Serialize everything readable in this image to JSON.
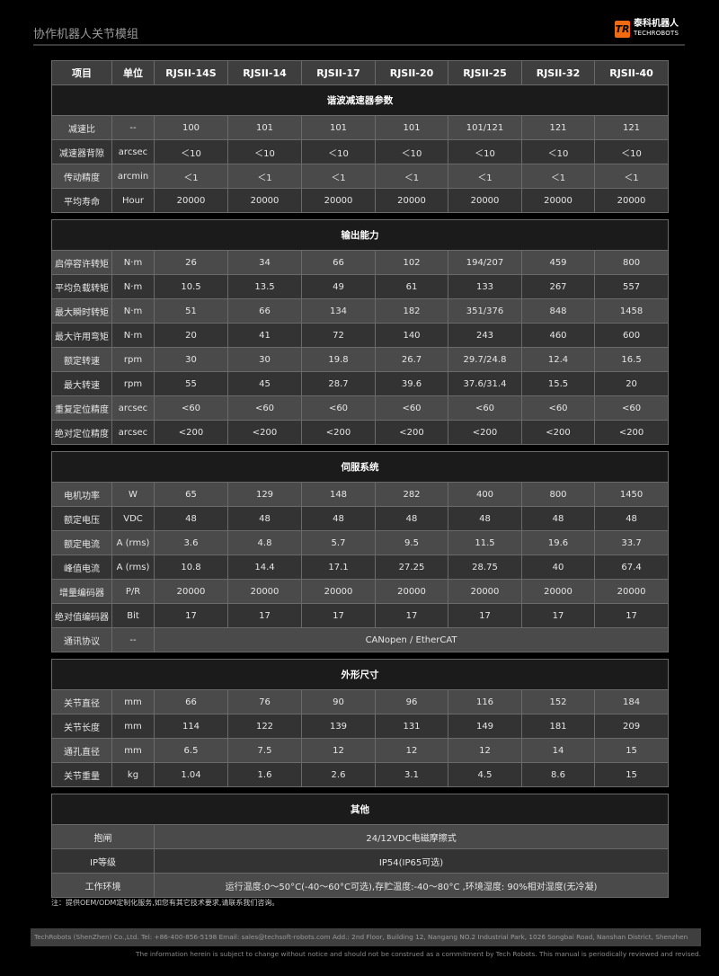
{
  "header": {
    "title": "协作机器人关节模组",
    "logo_mark": "TR",
    "logo_cn": "泰科机器人",
    "logo_en": "TECHROBOTS"
  },
  "colors": {
    "background": "#000000",
    "header_row": "#3e3e3e",
    "section_row": "#1c1b1c",
    "row_light": "#4a4a4a",
    "row_dark": "#333333",
    "logo": "#f06a12"
  },
  "table": {
    "columns": [
      "项目",
      "单位",
      "RJSII-14S",
      "RJSII-14",
      "RJSII-17",
      "RJSII-20",
      "RJSII-25",
      "RJSII-32",
      "RJSII-40"
    ],
    "sections": [
      {
        "title": "谐波减速器参数",
        "rows": [
          {
            "label": "减速比",
            "unit": "--",
            "values": [
              "100",
              "101",
              "101",
              "101",
              "101/121",
              "121",
              "121"
            ]
          },
          {
            "label": "减速器背隙",
            "unit": "arcsec",
            "values": [
              "＜10",
              "＜10",
              "＜10",
              "＜10",
              "＜10",
              "＜10",
              "＜10"
            ]
          },
          {
            "label": "传动精度",
            "unit": "arcmin",
            "values": [
              "＜1",
              "＜1",
              "＜1",
              "＜1",
              "＜1",
              "＜1",
              "＜1"
            ]
          },
          {
            "label": "平均寿命",
            "unit": "Hour",
            "values": [
              "20000",
              "20000",
              "20000",
              "20000",
              "20000",
              "20000",
              "20000"
            ]
          }
        ]
      },
      {
        "title": "输出能力",
        "rows": [
          {
            "label": "启停容许转矩",
            "unit": "N·m",
            "values": [
              "26",
              "34",
              "66",
              "102",
              "194/207",
              "459",
              "800"
            ]
          },
          {
            "label": "平均负载转矩",
            "unit": "N·m",
            "values": [
              "10.5",
              "13.5",
              "49",
              "61",
              "133",
              "267",
              "557"
            ]
          },
          {
            "label": "最大瞬时转矩",
            "unit": "N·m",
            "values": [
              "51",
              "66",
              "134",
              "182",
              "351/376",
              "848",
              "1458"
            ]
          },
          {
            "label": "最大许用弯矩",
            "unit": "N·m",
            "values": [
              "20",
              "41",
              "72",
              "140",
              "243",
              "460",
              "600"
            ]
          },
          {
            "label": "额定转速",
            "unit": "rpm",
            "values": [
              "30",
              "30",
              "19.8",
              "26.7",
              "29.7/24.8",
              "12.4",
              "16.5"
            ]
          },
          {
            "label": "最大转速",
            "unit": "rpm",
            "values": [
              "55",
              "45",
              "28.7",
              "39.6",
              "37.6/31.4",
              "15.5",
              "20"
            ]
          },
          {
            "label": "重复定位精度",
            "unit": "arcsec",
            "values": [
              "<60",
              "<60",
              "<60",
              "<60",
              "<60",
              "<60",
              "<60"
            ]
          },
          {
            "label": "绝对定位精度",
            "unit": "arcsec",
            "values": [
              "<200",
              "<200",
              "<200",
              "<200",
              "<200",
              "<200",
              "<200"
            ]
          }
        ]
      },
      {
        "title": "伺服系统",
        "rows": [
          {
            "label": "电机功率",
            "unit": "W",
            "values": [
              "65",
              "129",
              "148",
              "282",
              "400",
              "800",
              "1450"
            ]
          },
          {
            "label": "额定电压",
            "unit": "VDC",
            "values": [
              "48",
              "48",
              "48",
              "48",
              "48",
              "48",
              "48"
            ]
          },
          {
            "label": "额定电流",
            "unit": "A (rms)",
            "values": [
              "3.6",
              "4.8",
              "5.7",
              "9.5",
              "11.5",
              "19.6",
              "33.7"
            ]
          },
          {
            "label": "峰值电流",
            "unit": "A (rms)",
            "values": [
              "10.8",
              "14.4",
              "17.1",
              "27.25",
              "28.75",
              "40",
              "67.4"
            ]
          },
          {
            "label": "增量编码器",
            "unit": "P/R",
            "values": [
              "20000",
              "20000",
              "20000",
              "20000",
              "20000",
              "20000",
              "20000"
            ]
          },
          {
            "label": "绝对值编码器",
            "unit": "Bit",
            "values": [
              "17",
              "17",
              "17",
              "17",
              "17",
              "17",
              "17"
            ]
          },
          {
            "label": "通讯协议",
            "unit": "--",
            "span_value": "CANopen / EtherCAT"
          }
        ]
      },
      {
        "title": "外形尺寸",
        "rows": [
          {
            "label": "关节直径",
            "unit": "mm",
            "values": [
              "66",
              "76",
              "90",
              "96",
              "116",
              "152",
              "184"
            ]
          },
          {
            "label": "关节长度",
            "unit": "mm",
            "values": [
              "114",
              "122",
              "139",
              "131",
              "149",
              "181",
              "209"
            ]
          },
          {
            "label": "通孔直径",
            "unit": "mm",
            "values": [
              "6.5",
              "7.5",
              "12",
              "12",
              "12",
              "14",
              "15"
            ]
          },
          {
            "label": "关节重量",
            "unit": "kg",
            "values": [
              "1.04",
              "1.6",
              "2.6",
              "3.1",
              "4.5",
              "8.6",
              "15"
            ]
          }
        ]
      },
      {
        "title": "其他",
        "no_header": true,
        "rows": [
          {
            "label": "抱闸",
            "span_value": "24/12VDC电磁摩擦式"
          },
          {
            "label": "IP等级",
            "span_value": "IP54(IP65可选)"
          },
          {
            "label": "工作环境",
            "span_value": "运行温度:0～50°C(-40～60°C可选),存贮温度:-40～80°C ,环境湿度: 90%相对湿度(无冷凝)"
          }
        ]
      }
    ]
  },
  "note": "注：提供OEM/ODM定制化服务,如您有其它技术要求,请联系我们咨询。",
  "footer": {
    "contact": "TechRobots (ShenZhen) Co.,Ltd.   Tel: +86-400-856-5198   Email: sales@techsoft-robots.com   Add.: 2nd Floor, Building 12, Nangang NO.2 Industrial Park, 1026 Songbai Road, Nanshan District, Shenzhen",
    "disclaimer": "The information herein is subject to change without notice and should not be construed as a commitment by Tech Robots. This manual is periodically reviewed and revised."
  }
}
